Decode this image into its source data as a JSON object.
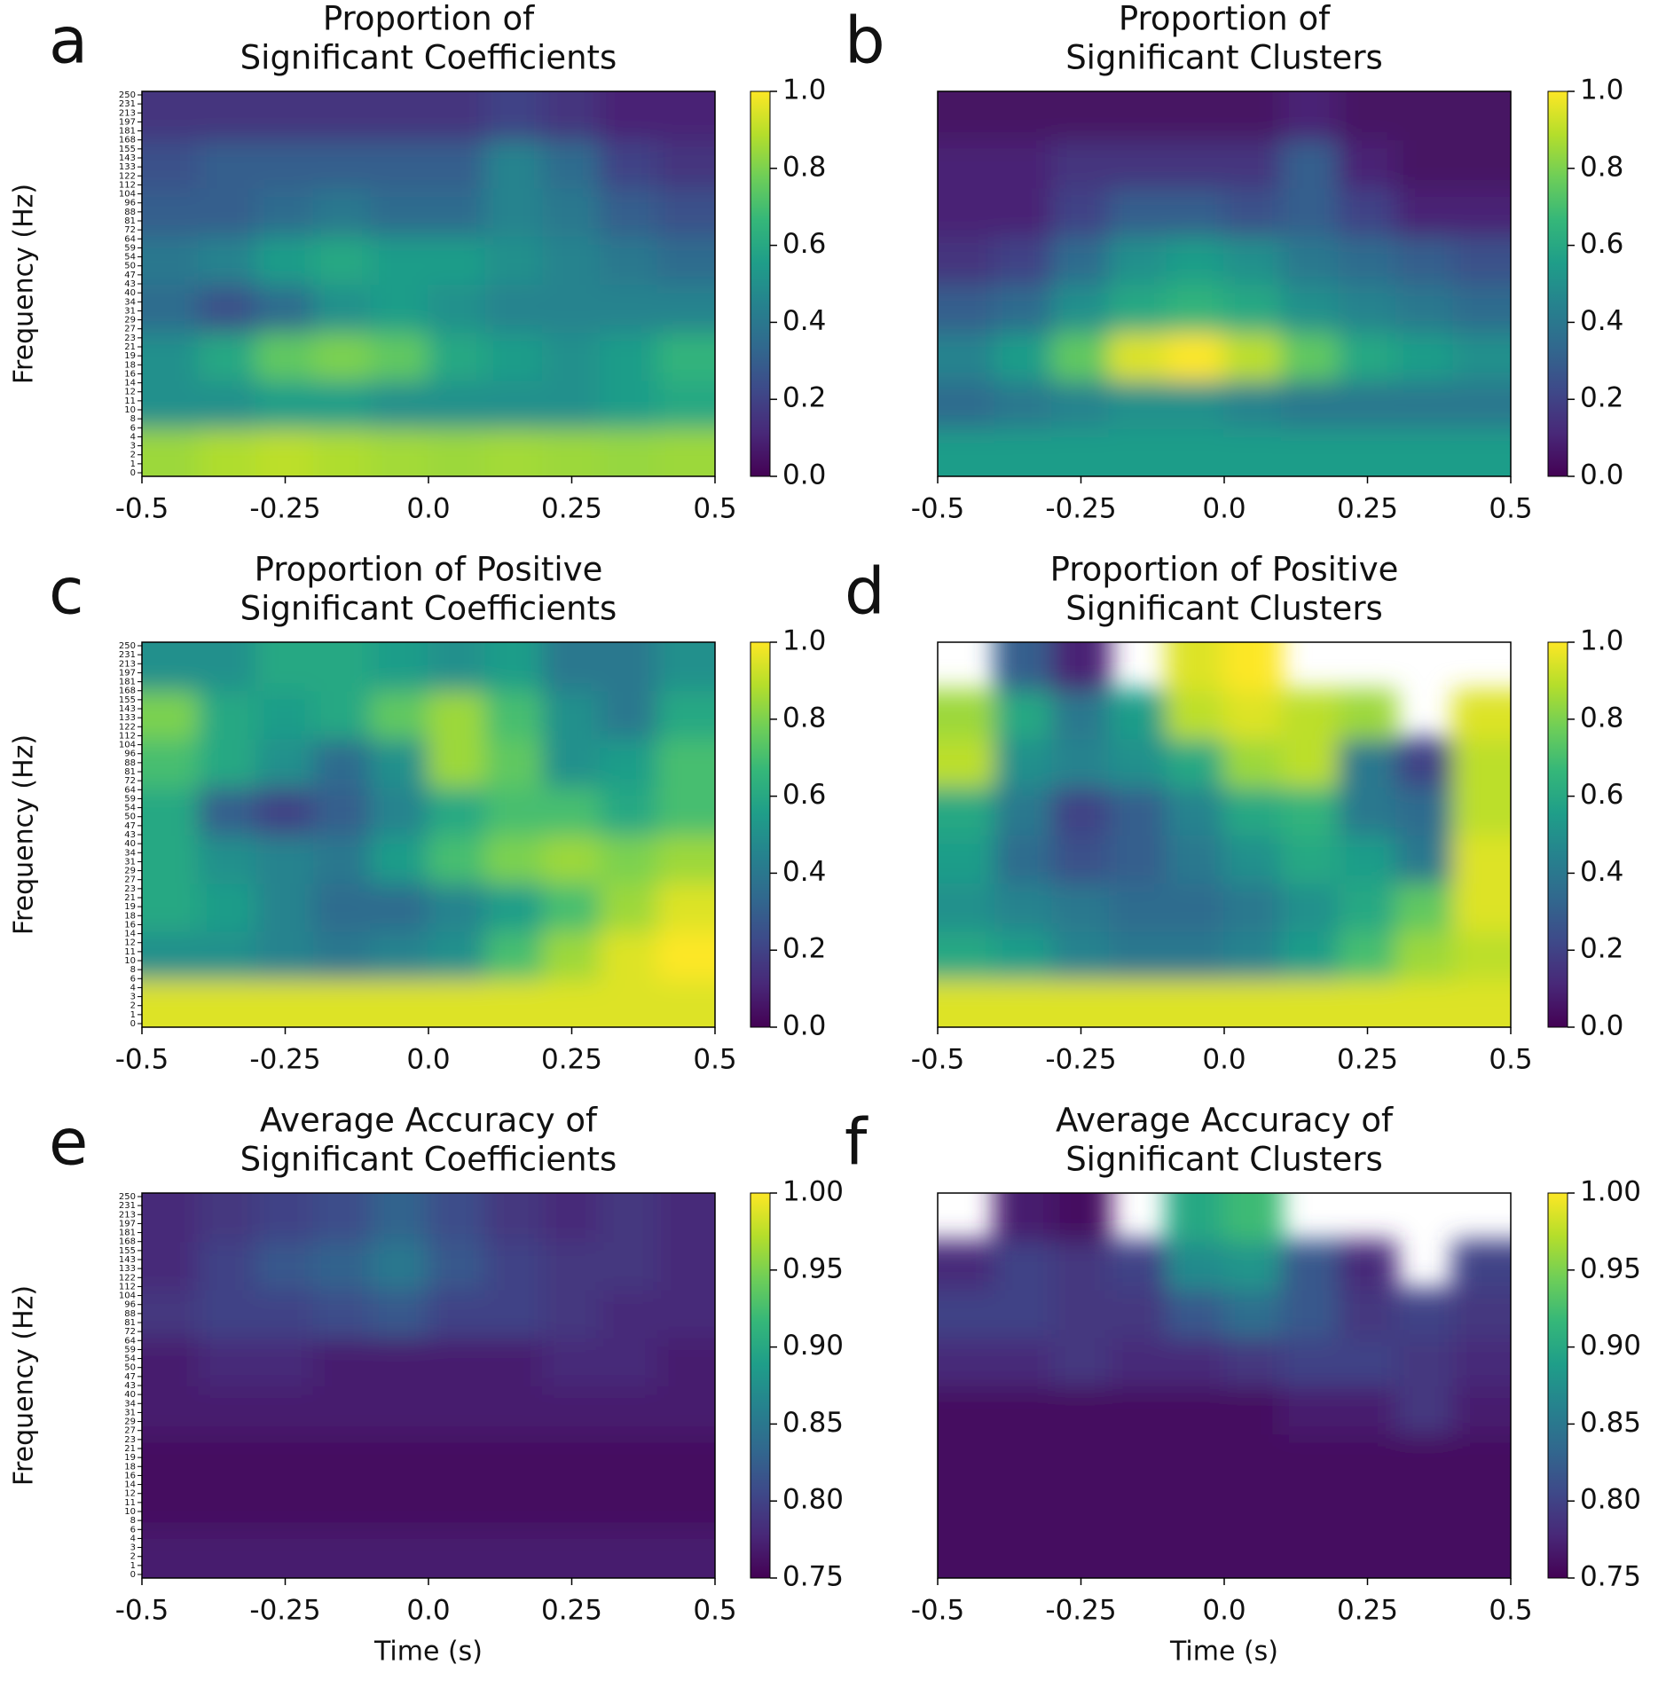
{
  "chart_data": [
    {
      "type": "heatmap",
      "panel": "a",
      "title": [
        "Proportion of",
        "Significant Coefficients"
      ],
      "ylabel": "Frequency (Hz)",
      "y_categories": [
        "0",
        "1",
        "2",
        "3",
        "4",
        "6",
        "8",
        "10",
        "11",
        "12",
        "14",
        "16",
        "18",
        "19",
        "21",
        "23",
        "27",
        "29",
        "31",
        "34",
        "40",
        "43",
        "47",
        "50",
        "54",
        "59",
        "64",
        "72",
        "81",
        "88",
        "96",
        "104",
        "112",
        "122",
        "133",
        "143",
        "155",
        "168",
        "181",
        "197",
        "213",
        "231",
        "250"
      ],
      "xlim": [
        -0.5,
        0.5
      ],
      "xticks": [
        -0.5,
        -0.25,
        {
          "value": 0,
          "label": "0.0"
        },
        0.25,
        0.5
      ],
      "clim": [
        0,
        1
      ],
      "cticks": [
        {
          "value": 0,
          "label": "0.0"
        },
        0.2,
        0.4,
        0.6,
        0.8,
        {
          "value": 1,
          "label": "1.0"
        }
      ],
      "values": [
        [
          0.85,
          0.88,
          0.9,
          0.88,
          0.86,
          0.85,
          0.86,
          0.85,
          0.84,
          0.85
        ],
        [
          0.5,
          0.5,
          0.55,
          0.55,
          0.5,
          0.5,
          0.5,
          0.5,
          0.55,
          0.6
        ],
        [
          0.5,
          0.6,
          0.75,
          0.8,
          0.75,
          0.6,
          0.55,
          0.5,
          0.55,
          0.65
        ],
        [
          0.35,
          0.25,
          0.35,
          0.5,
          0.55,
          0.5,
          0.45,
          0.45,
          0.45,
          0.45
        ],
        [
          0.4,
          0.45,
          0.55,
          0.6,
          0.55,
          0.55,
          0.5,
          0.45,
          0.4,
          0.35
        ],
        [
          0.3,
          0.3,
          0.35,
          0.4,
          0.35,
          0.35,
          0.45,
          0.4,
          0.3,
          0.25
        ],
        [
          0.25,
          0.3,
          0.3,
          0.3,
          0.3,
          0.3,
          0.45,
          0.35,
          0.2,
          0.15
        ],
        [
          0.15,
          0.15,
          0.15,
          0.15,
          0.15,
          0.15,
          0.2,
          0.15,
          0.1,
          0.1
        ]
      ]
    },
    {
      "type": "heatmap",
      "panel": "b",
      "title": [
        "Proportion of",
        "Significant Clusters"
      ],
      "xlim": [
        -0.5,
        0.5
      ],
      "xticks": [
        -0.5,
        -0.25,
        {
          "value": 0,
          "label": "0.0"
        },
        0.25,
        0.5
      ],
      "clim": [
        0,
        1
      ],
      "cticks": [
        {
          "value": 0,
          "label": "0.0"
        },
        0.2,
        0.4,
        0.6,
        0.8,
        {
          "value": 1,
          "label": "1.0"
        }
      ],
      "values": [
        [
          0.55,
          0.55,
          0.55,
          0.55,
          0.55,
          0.55,
          0.55,
          0.55,
          0.55,
          0.55
        ],
        [
          0.35,
          0.4,
          0.45,
          0.5,
          0.5,
          0.45,
          0.4,
          0.4,
          0.4,
          0.4
        ],
        [
          0.45,
          0.55,
          0.75,
          0.95,
          1.0,
          0.9,
          0.75,
          0.6,
          0.55,
          0.5
        ],
        [
          0.3,
          0.35,
          0.5,
          0.6,
          0.65,
          0.6,
          0.5,
          0.45,
          0.4,
          0.35
        ],
        [
          0.15,
          0.2,
          0.35,
          0.5,
          0.55,
          0.5,
          0.4,
          0.35,
          0.3,
          0.25
        ],
        [
          0.1,
          0.1,
          0.2,
          0.3,
          0.3,
          0.25,
          0.3,
          0.2,
          0.1,
          0.1
        ],
        [
          0.1,
          0.1,
          0.15,
          0.15,
          0.15,
          0.15,
          0.3,
          0.1,
          0.05,
          0.05
        ],
        [
          0.05,
          0.05,
          0.05,
          0.05,
          0.05,
          0.05,
          0.1,
          0.05,
          0.05,
          0.05
        ]
      ]
    },
    {
      "type": "heatmap",
      "panel": "c",
      "title": [
        "Proportion of Positive",
        "Significant Coefficients"
      ],
      "ylabel": "Frequency (Hz)",
      "y_categories": [
        "0",
        "1",
        "2",
        "3",
        "4",
        "6",
        "8",
        "10",
        "11",
        "12",
        "14",
        "16",
        "18",
        "19",
        "21",
        "23",
        "27",
        "29",
        "31",
        "34",
        "40",
        "43",
        "47",
        "50",
        "54",
        "59",
        "64",
        "72",
        "81",
        "88",
        "96",
        "104",
        "112",
        "122",
        "133",
        "143",
        "155",
        "168",
        "181",
        "197",
        "213",
        "231",
        "250"
      ],
      "xlim": [
        -0.5,
        0.5
      ],
      "xticks": [
        -0.5,
        -0.25,
        {
          "value": 0,
          "label": "0.0"
        },
        0.25,
        0.5
      ],
      "clim": [
        0,
        1
      ],
      "cticks": [
        {
          "value": 0,
          "label": "0.0"
        },
        0.2,
        0.4,
        0.6,
        0.8,
        {
          "value": 1,
          "label": "1.0"
        }
      ],
      "values": [
        [
          0.95,
          0.95,
          0.95,
          0.95,
          0.95,
          0.95,
          0.95,
          0.95,
          0.95,
          0.95
        ],
        [
          0.5,
          0.5,
          0.45,
          0.4,
          0.45,
          0.5,
          0.7,
          0.85,
          0.95,
          1.0
        ],
        [
          0.6,
          0.55,
          0.45,
          0.35,
          0.35,
          0.45,
          0.55,
          0.7,
          0.85,
          0.95
        ],
        [
          0.6,
          0.5,
          0.45,
          0.4,
          0.55,
          0.7,
          0.8,
          0.85,
          0.8,
          0.85
        ],
        [
          0.6,
          0.3,
          0.2,
          0.3,
          0.45,
          0.6,
          0.7,
          0.7,
          0.6,
          0.7
        ],
        [
          0.7,
          0.6,
          0.5,
          0.35,
          0.5,
          0.85,
          0.75,
          0.5,
          0.55,
          0.7
        ],
        [
          0.8,
          0.6,
          0.55,
          0.6,
          0.75,
          0.85,
          0.7,
          0.5,
          0.4,
          0.6
        ],
        [
          0.5,
          0.5,
          0.6,
          0.6,
          0.55,
          0.5,
          0.55,
          0.4,
          0.4,
          0.5
        ]
      ]
    },
    {
      "type": "heatmap",
      "panel": "d",
      "title": [
        "Proportion of Positive",
        "Significant Clusters"
      ],
      "xlim": [
        -0.5,
        0.5
      ],
      "xticks": [
        -0.5,
        -0.25,
        {
          "value": 0,
          "label": "0.0"
        },
        0.25,
        0.5
      ],
      "clim": [
        0,
        1
      ],
      "cticks": [
        {
          "value": 0,
          "label": "0.0"
        },
        0.2,
        0.4,
        0.6,
        0.8,
        {
          "value": 1,
          "label": "1.0"
        }
      ],
      "values": [
        [
          0.95,
          0.95,
          0.95,
          0.95,
          0.95,
          0.95,
          0.95,
          0.95,
          0.95,
          0.95
        ],
        [
          0.6,
          0.55,
          0.45,
          0.4,
          0.4,
          0.45,
          0.55,
          0.7,
          0.85,
          0.9
        ],
        [
          0.5,
          0.45,
          0.4,
          0.35,
          0.35,
          0.4,
          0.5,
          0.6,
          0.75,
          0.95
        ],
        [
          0.55,
          0.35,
          0.25,
          0.3,
          0.4,
          0.5,
          0.6,
          0.55,
          0.4,
          0.95
        ],
        [
          0.6,
          0.4,
          0.2,
          0.3,
          0.45,
          0.6,
          0.65,
          0.4,
          0.35,
          0.9
        ],
        [
          0.9,
          0.5,
          0.45,
          0.5,
          0.6,
          0.85,
          0.9,
          0.4,
          0.2,
          0.9
        ],
        [
          0.85,
          0.6,
          0.4,
          0.55,
          0.9,
          0.95,
          0.9,
          0.85,
          null,
          0.95
        ],
        [
          null,
          0.3,
          0.1,
          null,
          0.95,
          1.0,
          null,
          null,
          null,
          null
        ]
      ]
    },
    {
      "type": "heatmap",
      "panel": "e",
      "title": [
        "Average Accuracy of",
        "Significant Coefficients"
      ],
      "ylabel": "Frequency (Hz)",
      "xlabel": "Time (s)",
      "y_categories": [
        "0",
        "1",
        "2",
        "3",
        "4",
        "6",
        "8",
        "10",
        "11",
        "12",
        "14",
        "16",
        "18",
        "19",
        "21",
        "23",
        "27",
        "29",
        "31",
        "34",
        "40",
        "43",
        "47",
        "50",
        "54",
        "59",
        "64",
        "72",
        "81",
        "88",
        "96",
        "104",
        "112",
        "122",
        "133",
        "143",
        "155",
        "168",
        "181",
        "197",
        "213",
        "231",
        "250"
      ],
      "xlim": [
        -0.5,
        0.5
      ],
      "xticks": [
        -0.5,
        -0.25,
        {
          "value": 0,
          "label": "0.0"
        },
        0.25,
        0.5
      ],
      "clim": [
        0.75,
        1
      ],
      "cticks": [
        0.75,
        {
          "value": 0.8,
          "label": "0.80"
        },
        0.85,
        {
          "value": 0.9,
          "label": "0.90"
        },
        0.95,
        {
          "value": 1,
          "label": "1.00"
        }
      ],
      "values": [
        [
          0.77,
          0.77,
          0.77,
          0.77,
          0.77,
          0.77,
          0.77,
          0.77,
          0.77,
          0.77
        ],
        [
          0.76,
          0.76,
          0.76,
          0.76,
          0.76,
          0.76,
          0.76,
          0.76,
          0.76,
          0.76
        ],
        [
          0.76,
          0.76,
          0.76,
          0.76,
          0.76,
          0.76,
          0.76,
          0.76,
          0.76,
          0.76
        ],
        [
          0.77,
          0.77,
          0.77,
          0.77,
          0.77,
          0.77,
          0.77,
          0.77,
          0.77,
          0.77
        ],
        [
          0.77,
          0.78,
          0.78,
          0.77,
          0.77,
          0.77,
          0.77,
          0.78,
          0.78,
          0.77
        ],
        [
          0.79,
          0.8,
          0.8,
          0.81,
          0.82,
          0.8,
          0.8,
          0.79,
          0.78,
          0.78
        ],
        [
          0.78,
          0.8,
          0.82,
          0.83,
          0.85,
          0.82,
          0.8,
          0.79,
          0.79,
          0.78
        ],
        [
          0.78,
          0.79,
          0.8,
          0.81,
          0.83,
          0.81,
          0.79,
          0.78,
          0.79,
          0.78
        ]
      ]
    },
    {
      "type": "heatmap",
      "panel": "f",
      "title": [
        "Average Accuracy of",
        "Significant Clusters"
      ],
      "xlabel": "Time (s)",
      "xlim": [
        -0.5,
        0.5
      ],
      "xticks": [
        -0.5,
        -0.25,
        {
          "value": 0,
          "label": "0.0"
        },
        0.25,
        0.5
      ],
      "clim": [
        0.75,
        1
      ],
      "cticks": [
        0.75,
        {
          "value": 0.8,
          "label": "0.80"
        },
        0.85,
        {
          "value": 0.9,
          "label": "0.90"
        },
        0.95,
        {
          "value": 1,
          "label": "1.00"
        }
      ],
      "values": [
        [
          0.76,
          0.76,
          0.76,
          0.76,
          0.76,
          0.76,
          0.76,
          0.76,
          0.76,
          0.76
        ],
        [
          0.76,
          0.76,
          0.76,
          0.76,
          0.76,
          0.76,
          0.76,
          0.76,
          0.76,
          0.76
        ],
        [
          0.76,
          0.76,
          0.76,
          0.76,
          0.76,
          0.76,
          0.76,
          0.76,
          0.76,
          0.76
        ],
        [
          0.76,
          0.76,
          0.76,
          0.76,
          0.76,
          0.76,
          0.77,
          0.77,
          0.79,
          0.77
        ],
        [
          0.78,
          0.78,
          0.79,
          0.78,
          0.78,
          0.79,
          0.8,
          0.8,
          0.79,
          0.78
        ],
        [
          0.8,
          0.8,
          0.79,
          0.79,
          0.82,
          0.84,
          0.82,
          0.79,
          0.8,
          0.79
        ],
        [
          0.78,
          0.8,
          0.79,
          0.8,
          0.87,
          0.88,
          0.82,
          0.78,
          null,
          0.8
        ],
        [
          null,
          0.77,
          0.76,
          null,
          0.9,
          0.92,
          null,
          null,
          null,
          null
        ]
      ]
    }
  ]
}
